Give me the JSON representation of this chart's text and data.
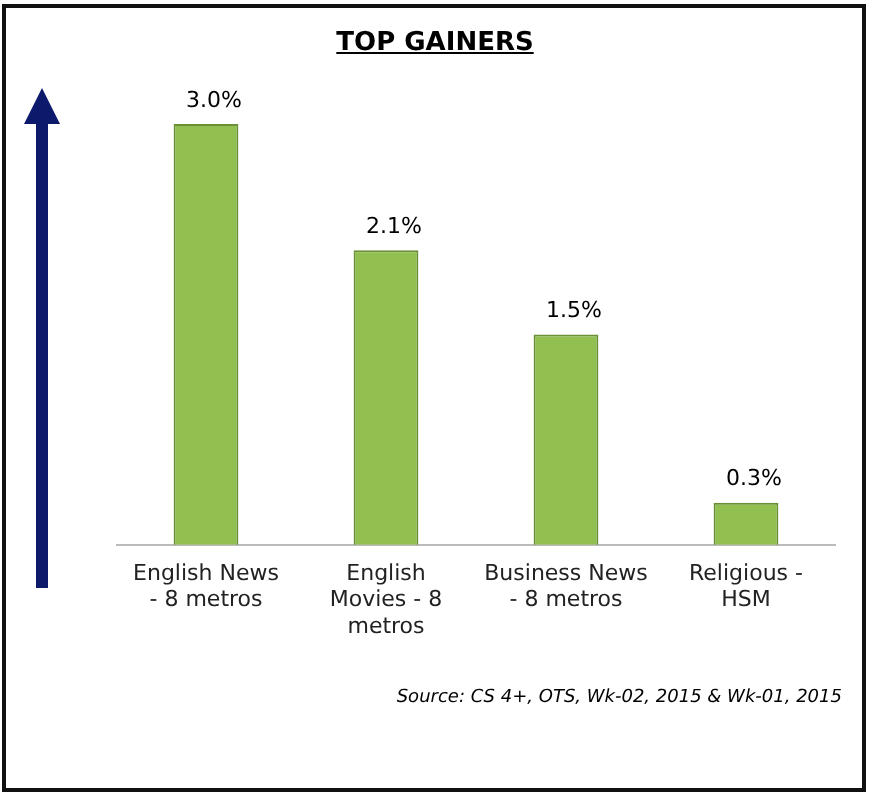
{
  "chart_data": {
    "type": "bar",
    "title": "TOP GAINERS",
    "categories": [
      "English News - 8 metros",
      "English Movies - 8 metros",
      "Business News - 8 metros",
      "Religious - HSM"
    ],
    "values": [
      3.0,
      2.1,
      1.5,
      0.3
    ],
    "value_labels": [
      "3.0%",
      "2.1%",
      "1.5%",
      "0.3%"
    ],
    "color": "#92c050",
    "tick_labels": "x",
    "grid": false,
    "legend": false,
    "annotations": [
      "Source: CS 4+,  OTS, Wk-02, 2015 & Wk-01, 2015"
    ]
  }
}
